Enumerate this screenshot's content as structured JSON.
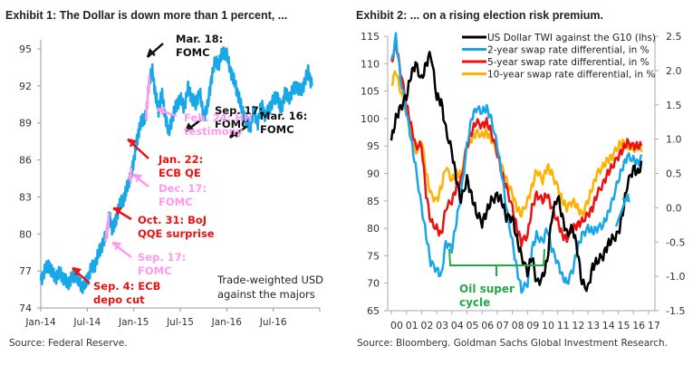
{
  "chart_data": [
    {
      "type": "line",
      "title": "Exhibit 1: The Dollar is down more than 1 percent, ...",
      "source": "Source: Federal Reserve.",
      "xlabel": "",
      "ylabel": "",
      "x_tick_labels": [
        "Jan-14",
        "Jul-14",
        "Jan-15",
        "Jul-15",
        "Jan-16",
        "Jul-16"
      ],
      "y_ticks": [
        74,
        77,
        80,
        83,
        86,
        89,
        92,
        95
      ],
      "ylim": [
        74,
        95
      ],
      "x_range_months": [
        0,
        36
      ],
      "grid": false,
      "annotation_box": "Trade-weighted USD against the majors",
      "series": [
        {
          "name": "Trade-weighted USD against the majors",
          "color": "#1aa7e8",
          "x_months": [
            0,
            0.5,
            1,
            1.5,
            2,
            2.5,
            3,
            3.5,
            4,
            4.5,
            5,
            5.5,
            6,
            6.5,
            7,
            7.5,
            8,
            8.5,
            8.8,
            9.2,
            9.6,
            10,
            10.4,
            10.8,
            11.2,
            11.6,
            12,
            12.4,
            12.8,
            13.2,
            13.6,
            14,
            14.4,
            14.8,
            15.2,
            15.6,
            16,
            16.5,
            17,
            17.5,
            18,
            18.5,
            19,
            19.5,
            20,
            20.5,
            21,
            21.5,
            22,
            22.5,
            23,
            23.5,
            24,
            24.5,
            25,
            25.5,
            26,
            26.5,
            27,
            27.5,
            28,
            28.5,
            29,
            29.5,
            30,
            30.5,
            31,
            31.5,
            32,
            32.5,
            33,
            33.5,
            34,
            34.5,
            35
          ],
          "values": [
            76.2,
            77.0,
            77.5,
            76.8,
            76.5,
            76.9,
            76.3,
            76.0,
            76.4,
            76.7,
            76.0,
            75.7,
            76.3,
            77.2,
            77.5,
            78.5,
            79.2,
            80.0,
            81.5,
            80.5,
            80.8,
            82.0,
            82.6,
            82.9,
            84.0,
            84.6,
            86.0,
            87.5,
            88.8,
            89.3,
            89.6,
            92.5,
            93.2,
            91.3,
            90.0,
            91.5,
            89.8,
            88.2,
            89.5,
            90.4,
            91.0,
            90.2,
            91.8,
            91.0,
            90.5,
            91.6,
            89.5,
            90.3,
            92.5,
            94.0,
            93.8,
            94.8,
            94.5,
            93.2,
            92.3,
            91.2,
            90.0,
            89.2,
            88.6,
            90.0,
            89.0,
            90.5,
            89.5,
            90.2,
            90.8,
            91.2,
            90.0,
            91.4,
            91.0,
            91.6,
            92.0,
            91.5,
            92.2,
            93.2,
            92.0
          ]
        }
      ],
      "highlights": [
        {
          "name": "Sep. 17 FOMC segment",
          "color": "#ff99ee",
          "x_months": [
            8.3,
            8.8
          ]
        },
        {
          "name": "Dec. 17 FOMC segment",
          "color": "#ff99ee",
          "x_months": [
            11.4,
            11.7
          ]
        },
        {
          "name": "Feb. 24 HH testimony segment",
          "color": "#ff99ee",
          "x_months": [
            13.6,
            14.1
          ]
        }
      ],
      "annotations": [
        {
          "lines": [
            "Mar. 18:",
            "FOMC"
          ],
          "color": "#111111"
        },
        {
          "lines": [
            "Sep. 17:",
            "FOMC"
          ],
          "color": "#111111"
        },
        {
          "lines": [
            "Mar. 16:",
            "FOMC"
          ],
          "color": "#111111"
        },
        {
          "lines": [
            "Feb. 24: HH",
            "testimony"
          ],
          "color": "#ff99ee"
        },
        {
          "lines": [
            "Jan. 22:",
            "ECB QE"
          ],
          "color": "#ee1111"
        },
        {
          "lines": [
            "Dec. 17:",
            "FOMC"
          ],
          "color": "#ff99ee"
        },
        {
          "lines": [
            "Oct. 31:  BoJ",
            "QQE surprise"
          ],
          "color": "#ee1111"
        },
        {
          "lines": [
            "Sep. 17:",
            "FOMC"
          ],
          "color": "#ff99ee"
        },
        {
          "lines": [
            "Sep. 4: ECB",
            "depo cut"
          ],
          "color": "#ee1111"
        }
      ]
    },
    {
      "type": "line",
      "title": "Exhibit 2: ... on a rising election risk premium.",
      "source": "Source: Bloomberg. Goldman Sachs Global Investment Research.",
      "x_tick_labels": [
        "00",
        "01",
        "02",
        "03",
        "04",
        "05",
        "06",
        "07",
        "08",
        "09",
        "10",
        "11",
        "12",
        "13",
        "14",
        "15",
        "16",
        "17"
      ],
      "y_left_ticks": [
        65,
        70,
        75,
        80,
        85,
        90,
        95,
        100,
        105,
        110,
        115
      ],
      "y_left_lim": [
        65,
        115
      ],
      "y_right_ticks": [
        "-1.5",
        "-1.0",
        "-0.5",
        "0.0",
        "0.5",
        "1.0",
        "1.5",
        "2.0",
        "2.5"
      ],
      "y_right_lim": [
        -1.5,
        2.5
      ],
      "grid": false,
      "legend_position": "top",
      "annotation": "Oil super cycle",
      "annotation_color": "#22aa44",
      "series": [
        {
          "name": "US Dollar TWI against the G10 (lhs)",
          "axis": "left",
          "color": "#000000",
          "x_years": [
            0,
            0.3,
            0.6,
            1.0,
            1.3,
            1.6,
            2.0,
            2.3,
            2.6,
            3.0,
            3.3,
            3.6,
            4.0,
            4.3,
            4.6,
            5.0,
            5.3,
            5.6,
            6.0,
            6.3,
            6.6,
            7.0,
            7.3,
            7.6,
            8.0,
            8.3,
            8.6,
            9.0,
            9.3,
            9.6,
            10.0,
            10.3,
            10.6,
            11.0,
            11.3,
            11.6,
            12.0,
            12.3,
            12.6,
            13.0,
            13.3,
            13.6,
            14.0,
            14.3,
            14.6,
            15.0,
            15.3,
            15.6,
            16.0,
            16.3,
            16.6
          ],
          "values": [
            96,
            100,
            102,
            104,
            108,
            110,
            107,
            110,
            112,
            104,
            103,
            98,
            94,
            89,
            85,
            89,
            86,
            83,
            81,
            83,
            85,
            86,
            85,
            82,
            82,
            78,
            75,
            72,
            75,
            70,
            71,
            74,
            82,
            86,
            82,
            79,
            80,
            76,
            70,
            69,
            73,
            74,
            75,
            77,
            78,
            79,
            83,
            88,
            91,
            90,
            92
          ],
          "right_values_approx_note": ""
        },
        {
          "name": "2-year swap rate differential, in %",
          "axis": "right",
          "color": "#1aa7e8",
          "x_years": [
            0,
            0.3,
            0.6,
            1.0,
            1.3,
            1.6,
            2.0,
            2.3,
            2.6,
            3.0,
            3.3,
            3.6,
            4.0,
            4.3,
            4.6,
            5.0,
            5.3,
            5.6,
            6.0,
            6.3,
            6.6,
            7.0,
            7.3,
            7.6,
            8.0,
            8.3,
            8.6,
            9.0,
            9.3,
            9.6,
            10.0,
            10.3,
            10.6,
            11.0,
            11.3,
            11.6,
            12.0,
            12.3,
            12.6,
            13.0,
            13.3,
            13.6,
            14.0,
            14.3,
            14.6,
            15.0,
            15.3,
            15.6,
            16.0,
            16.3,
            16.6
          ],
          "values": [
            2.1,
            2.5,
            1.9,
            1.4,
            1.0,
            0.6,
            0.0,
            -0.4,
            -0.8,
            -0.9,
            -1.0,
            -0.5,
            -0.6,
            -0.2,
            0.2,
            0.9,
            1.3,
            1.45,
            1.4,
            1.45,
            1.3,
            0.9,
            0.5,
            0.0,
            -0.5,
            -0.9,
            -1.2,
            -1.1,
            -0.6,
            -0.4,
            -0.5,
            -0.3,
            -0.6,
            -0.8,
            -1.0,
            -1.1,
            -0.9,
            -0.6,
            -0.4,
            -0.3,
            -0.35,
            -0.3,
            -0.25,
            -0.1,
            0.1,
            0.4,
            0.6,
            0.75,
            0.7,
            0.65,
            0.75
          ]
        },
        {
          "name": "5-year swap rate differential, in %",
          "axis": "right",
          "color": "#ee1111",
          "x_years": [
            0,
            0.3,
            0.6,
            1.0,
            1.3,
            1.6,
            2.0,
            2.3,
            2.6,
            3.0,
            3.3,
            3.6,
            4.0,
            4.3,
            4.6,
            5.0,
            5.3,
            5.6,
            6.0,
            6.3,
            6.6,
            7.0,
            7.3,
            7.6,
            8.0,
            8.3,
            8.6,
            9.0,
            9.3,
            9.6,
            10.0,
            10.3,
            10.6,
            11.0,
            11.3,
            11.6,
            12.0,
            12.3,
            12.6,
            13.0,
            13.3,
            13.6,
            14.0,
            14.3,
            14.6,
            15.0,
            15.3,
            15.6,
            16.0,
            16.3,
            16.6
          ],
          "values": [
            2.1,
            2.4,
            2.0,
            1.5,
            1.2,
            0.9,
            0.9,
            0.2,
            -0.2,
            -0.3,
            -0.4,
            0.0,
            0.1,
            0.3,
            0.4,
            0.9,
            1.1,
            1.25,
            1.2,
            1.25,
            1.1,
            0.8,
            0.5,
            0.3,
            0.0,
            -0.3,
            -0.5,
            -0.4,
            0.0,
            0.2,
            0.1,
            0.2,
            0.0,
            -0.2,
            -0.4,
            -0.45,
            -0.3,
            -0.25,
            -0.2,
            -0.1,
            0.0,
            0.2,
            0.35,
            0.5,
            0.6,
            0.75,
            0.85,
            0.95,
            0.9,
            0.9,
            0.9
          ]
        },
        {
          "name": "10-year swap rate differential, in %",
          "axis": "right",
          "color": "#ffb300",
          "x_years": [
            0,
            0.3,
            0.6,
            1.0,
            1.3,
            1.6,
            2.0,
            2.3,
            2.6,
            3.0,
            3.3,
            3.6,
            4.0,
            4.3,
            4.6,
            5.0,
            5.3,
            5.6,
            6.0,
            6.3,
            6.6,
            7.0,
            7.3,
            7.6,
            8.0,
            8.3,
            8.6,
            9.0,
            9.3,
            9.6,
            10.0,
            10.3,
            10.6,
            11.0,
            11.3,
            11.6,
            12.0,
            12.3,
            12.6,
            13.0,
            13.3,
            13.6,
            14.0,
            14.3,
            14.6,
            15.0,
            15.3,
            15.6,
            16.0,
            16.3,
            16.6
          ],
          "values": [
            1.8,
            2.0,
            1.7,
            1.4,
            1.1,
            0.8,
            1.0,
            0.5,
            0.2,
            0.1,
            0.3,
            0.6,
            0.4,
            0.5,
            0.5,
            0.9,
            1.0,
            1.1,
            1.05,
            1.1,
            1.0,
            0.8,
            0.6,
            0.4,
            0.2,
            0.0,
            -0.1,
            0.1,
            0.3,
            0.55,
            0.4,
            0.6,
            0.5,
            0.3,
            0.1,
            0.0,
            0.1,
            0.0,
            -0.1,
            0.1,
            0.3,
            0.5,
            0.6,
            0.7,
            0.75,
            0.9,
            0.95,
            0.9,
            0.85,
            0.9,
            0.85
          ]
        }
      ]
    }
  ]
}
